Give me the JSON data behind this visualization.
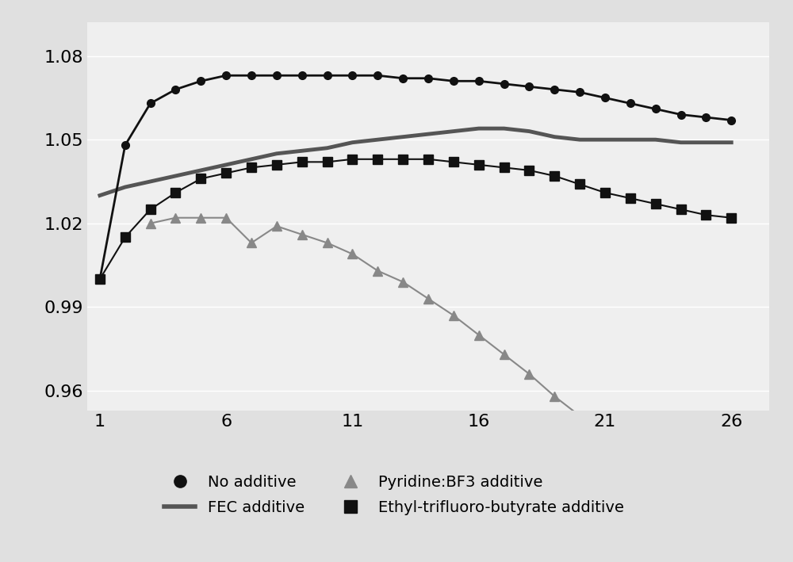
{
  "no_additive_x": [
    1,
    2,
    3,
    4,
    5,
    6,
    7,
    8,
    9,
    10,
    11,
    12,
    13,
    14,
    15,
    16,
    17,
    18,
    19,
    20,
    21,
    22,
    23,
    24,
    25,
    26
  ],
  "no_additive_y": [
    1.0,
    1.048,
    1.063,
    1.068,
    1.071,
    1.073,
    1.073,
    1.073,
    1.073,
    1.073,
    1.073,
    1.073,
    1.072,
    1.072,
    1.071,
    1.071,
    1.07,
    1.069,
    1.068,
    1.067,
    1.065,
    1.063,
    1.061,
    1.059,
    1.058,
    1.057
  ],
  "pyridine_x": [
    3,
    4,
    5,
    6,
    7,
    8,
    9,
    10,
    11,
    12,
    13,
    14,
    15,
    16,
    17,
    18,
    19,
    20
  ],
  "pyridine_y": [
    1.02,
    1.022,
    1.022,
    1.022,
    1.013,
    1.019,
    1.016,
    1.013,
    1.009,
    1.003,
    0.999,
    0.993,
    0.987,
    0.98,
    0.973,
    0.966,
    0.958,
    0.951
  ],
  "fec_x": [
    1,
    2,
    3,
    4,
    5,
    6,
    7,
    8,
    9,
    10,
    11,
    12,
    13,
    14,
    15,
    16,
    17,
    18,
    19,
    20,
    21,
    22,
    23,
    24,
    25,
    26
  ],
  "fec_y": [
    1.03,
    1.033,
    1.035,
    1.037,
    1.039,
    1.041,
    1.043,
    1.045,
    1.046,
    1.047,
    1.049,
    1.05,
    1.051,
    1.052,
    1.053,
    1.054,
    1.054,
    1.053,
    1.051,
    1.05,
    1.05,
    1.05,
    1.05,
    1.049,
    1.049,
    1.049
  ],
  "ethyl_x": [
    1,
    2,
    3,
    4,
    5,
    6,
    7,
    8,
    9,
    10,
    11,
    12,
    13,
    14,
    15,
    16,
    17,
    18,
    19,
    20,
    21,
    22,
    23,
    24,
    25,
    26
  ],
  "ethyl_y": [
    1.0,
    1.015,
    1.025,
    1.031,
    1.036,
    1.038,
    1.04,
    1.041,
    1.042,
    1.042,
    1.043,
    1.043,
    1.043,
    1.043,
    1.042,
    1.041,
    1.04,
    1.039,
    1.037,
    1.034,
    1.031,
    1.029,
    1.027,
    1.025,
    1.023,
    1.022
  ],
  "no_additive_color": "#111111",
  "pyridine_color": "#888888",
  "fec_color": "#555555",
  "ethyl_color": "#111111",
  "xlim_min": 0.5,
  "xlim_max": 27.5,
  "ylim_min": 0.953,
  "ylim_max": 1.092,
  "xticks": [
    1,
    6,
    11,
    16,
    21,
    26
  ],
  "yticks": [
    0.96,
    0.99,
    1.02,
    1.05,
    1.08
  ],
  "legend_no_additive": "No additive",
  "legend_pyridine": "Pyridine:BF3 additive",
  "legend_fec": "FEC additive",
  "legend_ethyl": "Ethyl-trifluoro-butyrate additive",
  "plot_bg": "#efefef",
  "fig_bg": "#e0e0e0",
  "grid_color": "#ffffff",
  "grid_linewidth": 1.0,
  "no_additive_lw": 2.0,
  "no_additive_ms": 7,
  "pyridine_lw": 1.5,
  "pyridine_ms": 8,
  "fec_lw": 3.5,
  "ethyl_lw": 1.5,
  "ethyl_ms": 8,
  "tick_fontsize": 16,
  "legend_fontsize": 14
}
